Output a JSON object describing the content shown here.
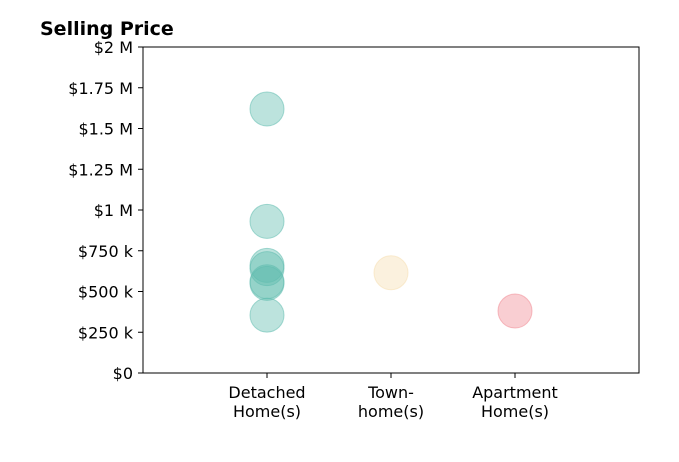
{
  "chart_data": {
    "type": "scatter",
    "title": "Selling Price",
    "xlabel": "",
    "ylabel": "",
    "categories": [
      {
        "lines": [
          "Detached",
          "Home(s)"
        ],
        "color": "#5fbcaf"
      },
      {
        "lines": [
          "Town-",
          "home(s)"
        ],
        "color": "#f5deb0"
      },
      {
        "lines": [
          "Apartment",
          "Home(s)"
        ],
        "color": "#f08a93"
      }
    ],
    "points": [
      {
        "category": 0,
        "y": 1620000
      },
      {
        "category": 0,
        "y": 930000
      },
      {
        "category": 0,
        "y": 660000
      },
      {
        "category": 0,
        "y": 640000
      },
      {
        "category": 0,
        "y": 560000
      },
      {
        "category": 0,
        "y": 550000
      },
      {
        "category": 0,
        "y": 355000
      },
      {
        "category": 1,
        "y": 615000
      },
      {
        "category": 2,
        "y": 380000
      }
    ],
    "ylim": [
      0,
      2000000
    ],
    "yticks": [
      {
        "value": 0,
        "label": "$0"
      },
      {
        "value": 250000,
        "label": "$250 k"
      },
      {
        "value": 500000,
        "label": "$500 k"
      },
      {
        "value": 750000,
        "label": "$750 k"
      },
      {
        "value": 1000000,
        "label": "$1 M"
      },
      {
        "value": 1250000,
        "label": "$1.25 M"
      },
      {
        "value": 1500000,
        "label": "$1.5 M"
      },
      {
        "value": 1750000,
        "label": "$1.75 M"
      },
      {
        "value": 2000000,
        "label": "$2 M"
      }
    ],
    "grid": false,
    "legend": "none"
  }
}
